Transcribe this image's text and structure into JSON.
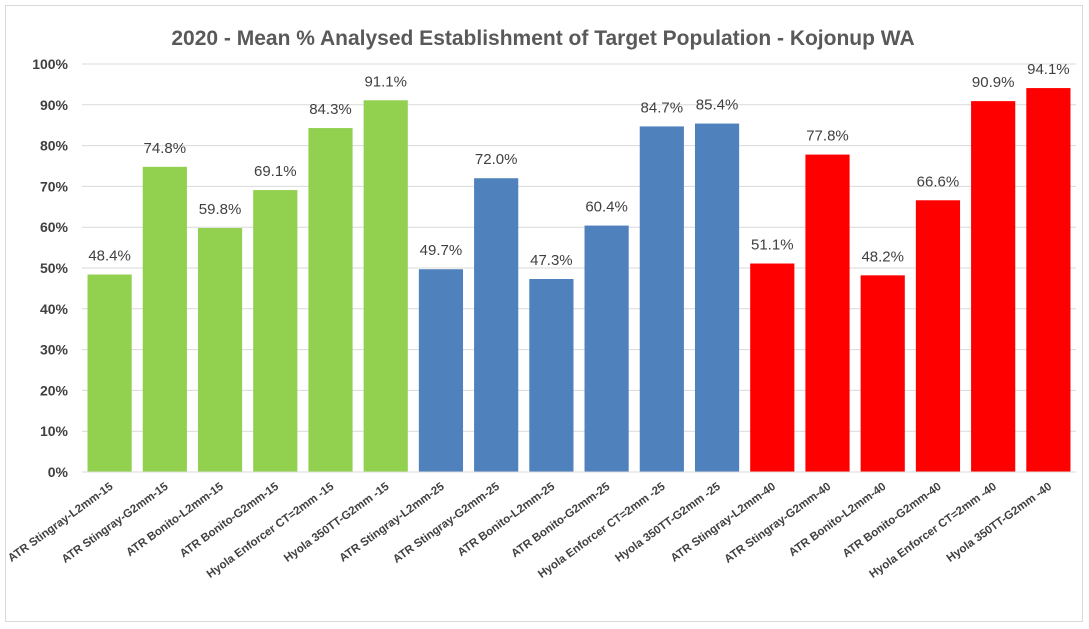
{
  "chart_data": {
    "type": "bar",
    "title": "2020 - Mean % Analysed Establishment of Target Population - Kojonup WA",
    "xlabel": "",
    "ylabel": "",
    "ylim": [
      0,
      100
    ],
    "yticks": [
      "0%",
      "10%",
      "20%",
      "30%",
      "40%",
      "50%",
      "60%",
      "70%",
      "80%",
      "90%",
      "100%"
    ],
    "grid": true,
    "legend": "none",
    "categories": [
      "ATR Stingray-L2mm-15",
      "ATR Stingray-G2mm-15",
      "ATR Bonito-L2mm-15",
      "ATR Bonito-G2mm-15",
      "Hyola Enforcer CT=2mm -15",
      "Hyola 350TT-G2mm -15",
      "ATR Stingray-L2mm-25",
      "ATR Stingray-G2mm-25",
      "ATR Bonito-L2mm-25",
      "ATR Bonito-G2mm-25",
      "Hyola Enforcer CT=2mm -25",
      "Hyola 350TT-G2mm -25",
      "ATR Stingray-L2mm-40",
      "ATR Stingray-G2mm-40",
      "ATR Bonito-L2mm-40",
      "ATR Bonito-G2mm-40",
      "Hyola Enforcer CT=2mm -40",
      "Hyola 350TT-G2mm -40"
    ],
    "values": [
      48.4,
      74.8,
      59.8,
      69.1,
      84.3,
      91.1,
      49.7,
      72.0,
      47.3,
      60.4,
      84.7,
      85.4,
      51.1,
      77.8,
      48.2,
      66.6,
      90.9,
      94.1
    ],
    "data_labels": [
      "48.4%",
      "74.8%",
      "59.8%",
      "69.1%",
      "84.3%",
      "91.1%",
      "49.7%",
      "72.0%",
      "47.3%",
      "60.4%",
      "84.7%",
      "85.4%",
      "51.1%",
      "77.8%",
      "48.2%",
      "66.6%",
      "90.9%",
      "94.1%"
    ],
    "colors": [
      "#92d050",
      "#92d050",
      "#92d050",
      "#92d050",
      "#92d050",
      "#92d050",
      "#4f81bd",
      "#4f81bd",
      "#4f81bd",
      "#4f81bd",
      "#4f81bd",
      "#4f81bd",
      "#ff0000",
      "#ff0000",
      "#ff0000",
      "#ff0000",
      "#ff0000",
      "#ff0000"
    ]
  }
}
